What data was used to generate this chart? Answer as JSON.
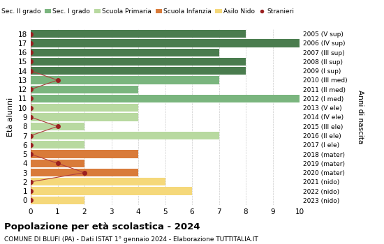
{
  "ages": [
    18,
    17,
    16,
    15,
    14,
    13,
    12,
    11,
    10,
    9,
    8,
    7,
    6,
    5,
    4,
    3,
    2,
    1,
    0
  ],
  "right_labels": [
    "2005 (V sup)",
    "2006 (IV sup)",
    "2007 (III sup)",
    "2008 (II sup)",
    "2009 (I sup)",
    "2010 (III med)",
    "2011 (II med)",
    "2012 (I med)",
    "2013 (V ele)",
    "2014 (IV ele)",
    "2015 (III ele)",
    "2016 (II ele)",
    "2017 (I ele)",
    "2018 (mater)",
    "2019 (mater)",
    "2020 (mater)",
    "2021 (nido)",
    "2022 (nido)",
    "2023 (nido)"
  ],
  "bar_values": [
    8,
    10,
    7,
    8,
    8,
    7,
    4,
    10,
    4,
    4,
    2,
    7,
    2,
    4,
    2,
    4,
    5,
    6,
    2
  ],
  "bar_colors": [
    "#4a7c4e",
    "#4a7c4e",
    "#4a7c4e",
    "#4a7c4e",
    "#4a7c4e",
    "#7ab57e",
    "#7ab57e",
    "#7ab57e",
    "#b8d9a0",
    "#b8d9a0",
    "#b8d9a0",
    "#b8d9a0",
    "#b8d9a0",
    "#d97b3a",
    "#d97b3a",
    "#d97b3a",
    "#f5d87a",
    "#f5d87a",
    "#f5d87a"
  ],
  "stranieri_x_by_age": {
    "18": 0,
    "17": 0,
    "16": 0,
    "15": 0,
    "14": 0,
    "13": 1,
    "12": 0,
    "11": 0,
    "10": 0,
    "9": 0,
    "8": 1,
    "7": 0,
    "6": 0,
    "5": 0,
    "4": 1,
    "3": 2,
    "2": 0,
    "1": 0,
    "0": 0
  },
  "legend_labels": [
    "Sec. II grado",
    "Sec. I grado",
    "Scuola Primaria",
    "Scuola Infanzia",
    "Asilo Nido",
    "Stranieri"
  ],
  "legend_colors": [
    "#4a7c4e",
    "#7ab57e",
    "#b8d9a0",
    "#d97b3a",
    "#f5d87a",
    "#9b2020"
  ],
  "ylabel": "Età alunni",
  "right_ylabel": "Anni di nascita",
  "title": "Popolazione per età scolastica - 2024",
  "subtitle": "COMUNE DI BLUFI (PA) - Dati ISTAT 1° gennaio 2024 - Elaborazione TUTTITALIA.IT",
  "xlim": [
    0,
    10
  ],
  "bar_height": 0.85,
  "background_color": "#ffffff",
  "grid_color": "#cccccc",
  "stranieri_color": "#9b2020",
  "stranieri_line_color": "#b04040"
}
